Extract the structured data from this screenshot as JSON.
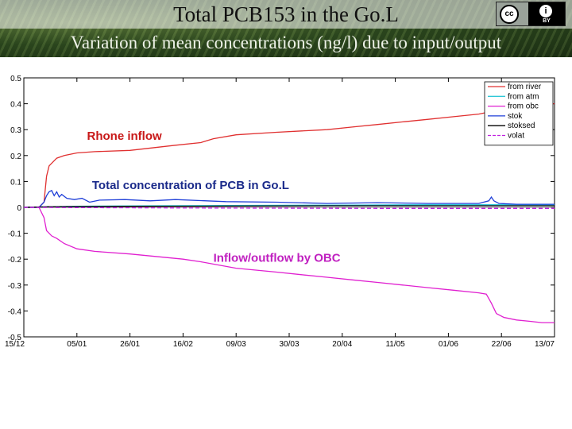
{
  "header": {
    "title": "Total PCB153 in the Go.L",
    "subtitle": "Variation of mean concentrations (ng/l)  due to input/output",
    "license": {
      "cc_icon": "cc-icon",
      "by_icon": "attribution-icon",
      "by_label": "BY"
    }
  },
  "chart_data": {
    "type": "line",
    "title": "",
    "xlabel": "",
    "ylabel": "",
    "x_tick_labels": [
      "15/12",
      "05/01",
      "26/01",
      "16/02",
      "09/03",
      "30/03",
      "20/04",
      "11/05",
      "01/06",
      "22/06",
      "13/07"
    ],
    "y_ticks": [
      0.5,
      0.4,
      0.3,
      0.2,
      0.1,
      0,
      -0.1,
      -0.2,
      -0.3,
      -0.4,
      -0.5
    ],
    "y_tick_labels": [
      "0.5",
      "0.4",
      "0.3",
      "0.2",
      "0.1",
      "0",
      "-0.1",
      "-0.2",
      "-0.3",
      "-0.4",
      "-0.5"
    ],
    "xlim": [
      0,
      210
    ],
    "ylim": [
      -0.5,
      0.5
    ],
    "grid": false,
    "legend_position": "top-right",
    "series": [
      {
        "name": "from river",
        "color": "#e03030",
        "style": "solid",
        "x": [
          0,
          6,
          8,
          9,
          10,
          11,
          13,
          16,
          21,
          28,
          42,
          60,
          70,
          75,
          84,
          100,
          110,
          120,
          130,
          140,
          150,
          160,
          170,
          180,
          185,
          188,
          189,
          190,
          200,
          210
        ],
        "y": [
          0,
          0,
          0.02,
          0.12,
          0.16,
          0.17,
          0.19,
          0.2,
          0.21,
          0.215,
          0.22,
          0.24,
          0.25,
          0.265,
          0.28,
          0.29,
          0.295,
          0.3,
          0.31,
          0.32,
          0.33,
          0.34,
          0.35,
          0.36,
          0.37,
          0.375,
          0.39,
          0.4,
          0.4,
          0.4
        ]
      },
      {
        "name": "from atm",
        "color": "#30c8d8",
        "style": "solid",
        "x": [
          0,
          10,
          20,
          30,
          50,
          80,
          100,
          130,
          160,
          190,
          210
        ],
        "y": [
          0,
          0.002,
          0.004,
          0.005,
          0.006,
          0.007,
          0.008,
          0.009,
          0.01,
          0.01,
          0.01
        ]
      },
      {
        "name": "from obc",
        "color": "#e020d0",
        "style": "solid",
        "x": [
          0,
          6,
          8,
          9,
          11,
          13,
          16,
          21,
          28,
          42,
          63,
          70,
          84,
          100,
          110,
          120,
          130,
          140,
          150,
          160,
          170,
          180,
          183,
          185,
          187,
          190,
          195,
          200,
          205,
          210
        ],
        "y": [
          0,
          0,
          -0.04,
          -0.09,
          -0.11,
          -0.12,
          -0.14,
          -0.16,
          -0.17,
          -0.18,
          -0.2,
          -0.21,
          -0.235,
          -0.25,
          -0.26,
          -0.27,
          -0.28,
          -0.29,
          -0.3,
          -0.31,
          -0.32,
          -0.33,
          -0.335,
          -0.37,
          -0.41,
          -0.425,
          -0.435,
          -0.44,
          -0.445,
          -0.445
        ]
      },
      {
        "name": "stok",
        "color": "#1f3fd8",
        "style": "solid",
        "x": [
          0,
          6,
          8,
          9,
          10,
          11,
          12,
          13,
          14,
          15,
          17,
          20,
          23,
          26,
          30,
          40,
          50,
          60,
          80,
          100,
          120,
          140,
          160,
          180,
          184,
          185,
          186,
          188,
          195,
          210
        ],
        "y": [
          0,
          0,
          0.02,
          0.045,
          0.06,
          0.065,
          0.045,
          0.06,
          0.04,
          0.05,
          0.035,
          0.03,
          0.035,
          0.02,
          0.028,
          0.03,
          0.025,
          0.03,
          0.022,
          0.02,
          0.015,
          0.018,
          0.015,
          0.015,
          0.025,
          0.04,
          0.025,
          0.015,
          0.012,
          0.012
        ]
      },
      {
        "name": "stoksed",
        "color": "#000000",
        "style": "solid",
        "x": [
          0,
          10,
          20,
          40,
          80,
          120,
          160,
          200,
          210
        ],
        "y": [
          0,
          0.002,
          0.003,
          0.004,
          0.005,
          0.006,
          0.006,
          0.006,
          0.006
        ]
      },
      {
        "name": "volat",
        "color": "#c020e0",
        "style": "dashed",
        "x": [
          0,
          20,
          60,
          100,
          140,
          180,
          210
        ],
        "y": [
          0,
          -0.001,
          -0.002,
          -0.003,
          -0.004,
          -0.004,
          -0.004
        ]
      }
    ],
    "annotations": [
      {
        "text": "Rhone inflow",
        "color": "#c81818",
        "x": 25,
        "y": 0.26
      },
      {
        "text": "Total concentration of PCB in Go.L",
        "color": "#1a2a8a",
        "x": 27,
        "y": 0.07
      },
      {
        "text": "Inflow/outflow by OBC",
        "color": "#c020c0",
        "x": 75,
        "y": -0.21
      }
    ]
  }
}
